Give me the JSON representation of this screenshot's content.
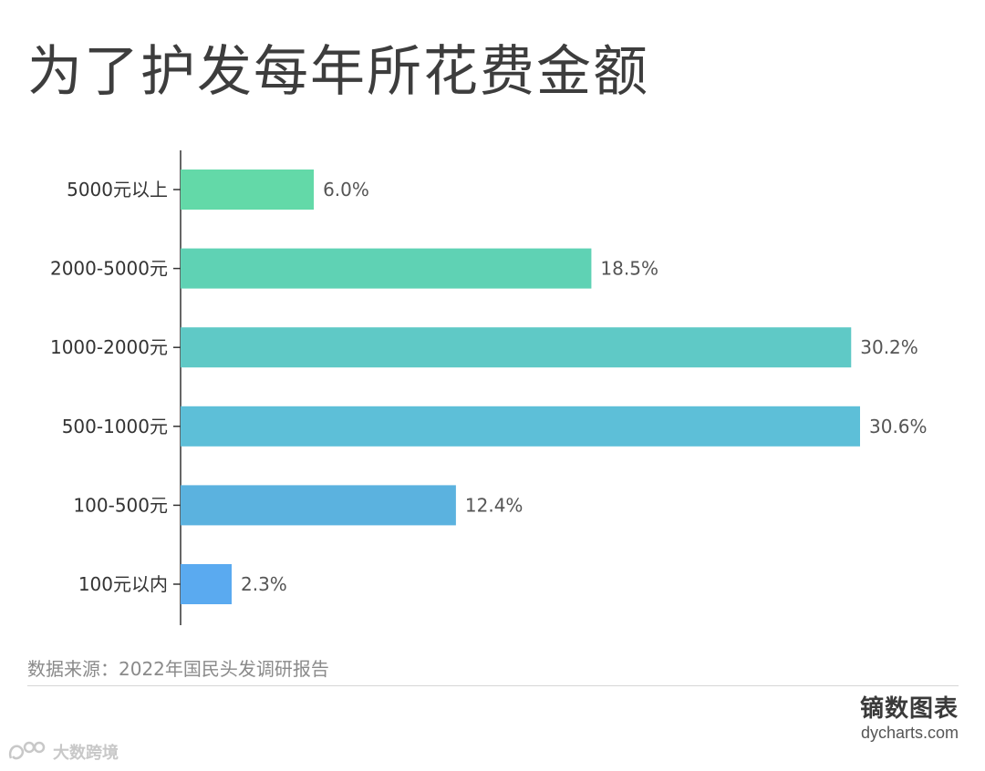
{
  "title": "为了护发每年所花费金额",
  "source": "数据来源：2022年国民头发调研报告",
  "brand": {
    "name": "镝数图表",
    "url": "dycharts.com"
  },
  "watermark": "大数跨境",
  "colors": [
    "#63d9a8",
    "#5fd2b4",
    "#5fc9c6",
    "#5dbfd8",
    "#5bb2df",
    "#5aaaf0"
  ],
  "chart_data": {
    "type": "bar",
    "orientation": "horizontal",
    "categories": [
      "5000元以上",
      "2000-5000元",
      "1000-2000元",
      "500-1000元",
      "100-500元",
      "100元以内"
    ],
    "values": [
      6.0,
      18.5,
      30.2,
      30.6,
      12.4,
      2.3
    ],
    "value_labels": [
      "6.0%",
      "18.5%",
      "30.2%",
      "30.6%",
      "12.4%",
      "2.3%"
    ],
    "unit": "%",
    "xlim": [
      0,
      30.6
    ],
    "grid": false,
    "legend": "none"
  }
}
